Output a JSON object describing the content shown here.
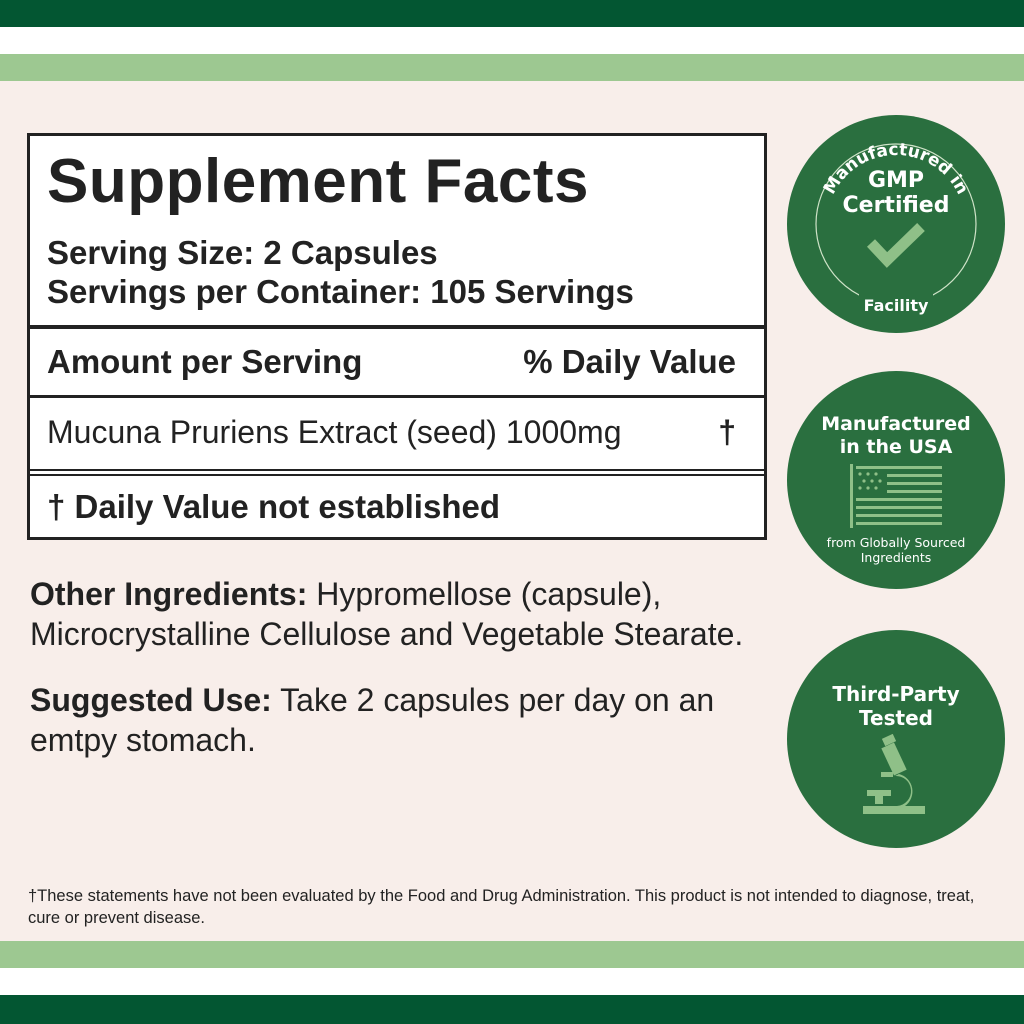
{
  "facts": {
    "title": "Supplement Facts",
    "serving_size": "Serving Size: 2 Capsules",
    "servings_per_container": "Servings per Container: 105 Servings",
    "amount_header": "Amount per Serving",
    "dv_header": "% Daily Value",
    "ingredient": "Mucuna Pruriens Extract (seed)",
    "amount": "1000mg",
    "dv_mark": "†",
    "note": "† Daily Value not established"
  },
  "other": {
    "label": "Other Ingredients:",
    "text": "Hypromellose (capsule), Microcrystalline Cellulose and Vegetable Stearate."
  },
  "use": {
    "label": "Suggested Use:",
    "text": "Take 2 capsules per day on an emtpy stomach."
  },
  "disclaimer": "†These statements have not been evaluated by the Food and Drug Administration. This product is not intended to diagnose, treat, cure or prevent disease.",
  "badges": {
    "gmp": {
      "top": "Manufactured in",
      "main1": "GMP",
      "main2": "Certified",
      "bottom": "Facility",
      "icon": "check-icon"
    },
    "usa": {
      "main1": "Manufactured",
      "main2": "in the USA",
      "sub1": "from Globally Sourced",
      "sub2": "Ingredients",
      "icon": "us-flag-icon"
    },
    "tested": {
      "main1": "Third-Party",
      "main2": "Tested",
      "icon": "microscope-icon"
    }
  },
  "colors": {
    "dark_green": "#035632",
    "light_green": "#9dc891",
    "badge_green": "#2a6f3f",
    "background": "#f8eeea"
  }
}
